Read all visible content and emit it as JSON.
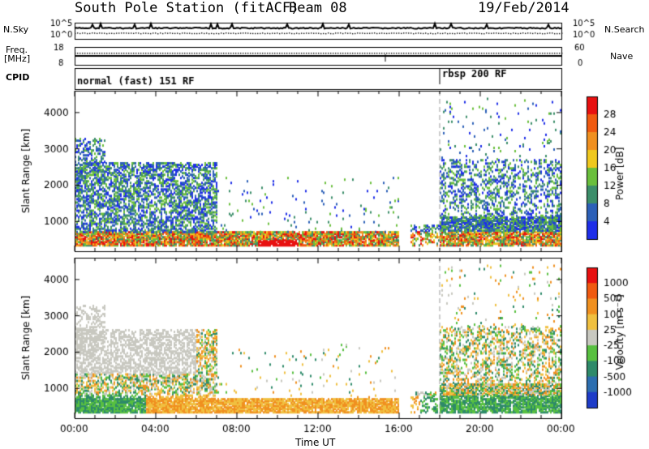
{
  "header": {
    "station": "South Pole Station (fitACF)",
    "beam": "Beam 08",
    "date": "19/Feb/2014"
  },
  "side_labels": {
    "nsky": "N.Sky",
    "nsearch": "N.Search",
    "freq_line1": "Freq.",
    "freq_line2": "[MHz]",
    "nave": "Nave",
    "cpid": "CPID"
  },
  "chart_data": [
    {
      "type": "line",
      "name": "noise",
      "y_ticks_left": [
        "10^5",
        "10^0"
      ],
      "y_ticks_right": [
        "10^5",
        "10^0"
      ],
      "series": [
        {
          "name": "N.Sky",
          "style": "solid"
        },
        {
          "name": "N.Search",
          "style": "dotted"
        }
      ]
    },
    {
      "type": "line",
      "name": "frequency",
      "y_ticks_left": [
        "18",
        "8"
      ],
      "y_ticks_right": [
        "60",
        "0"
      ],
      "series": [
        {
          "name": "Freq. [MHz]",
          "style": "solid",
          "value": 12
        },
        {
          "name": "Nave",
          "style": "dotted",
          "value": 55
        }
      ]
    },
    {
      "type": "table",
      "name": "cpid",
      "segments": [
        {
          "label": "normal (fast) 151 RF",
          "start_hour": 0,
          "end_hour": 18
        },
        {
          "label": "rbsp 200 RF",
          "start_hour": 18,
          "end_hour": 24
        }
      ]
    },
    {
      "type": "heatmap",
      "name": "power",
      "ylabel": "Slant Range [km]",
      "y_ticks": [
        1000,
        2000,
        3000,
        4000
      ],
      "ylim": [
        180,
        4600
      ],
      "colorbar_label": "Power [dB]",
      "colorbar_ticks": [
        4,
        8,
        12,
        16,
        20,
        24,
        28
      ],
      "colorbar_colors": [
        "#1e2ee8",
        "#2c60b8",
        "#3c8e6a",
        "#6abf3c",
        "#f0c81e",
        "#f09020",
        "#f05a10",
        "#e81010"
      ]
    },
    {
      "type": "heatmap",
      "name": "velocity",
      "ylabel": "Slant Range [km]",
      "y_ticks": [
        1000,
        2000,
        3000,
        4000
      ],
      "ylim": [
        180,
        4600
      ],
      "colorbar_label": "Velocity [m s⁻¹]",
      "colorbar_ticks": [
        1000,
        500,
        100,
        25,
        -25,
        -100,
        -500,
        -1000
      ],
      "colorbar_colors": [
        "#1e3cc8",
        "#2c6eb0",
        "#2e8a6a",
        "#58c040",
        "#c8c8c0",
        "#f0c040",
        "#f09020",
        "#f05a10",
        "#e81010"
      ]
    }
  ],
  "x_axis": {
    "label": "Time UT",
    "ticks": [
      "00:00",
      "04:00",
      "08:00",
      "12:00",
      "16:00",
      "20:00",
      "00:00"
    ]
  },
  "colors": {
    "mode_change_line": "#999999"
  }
}
